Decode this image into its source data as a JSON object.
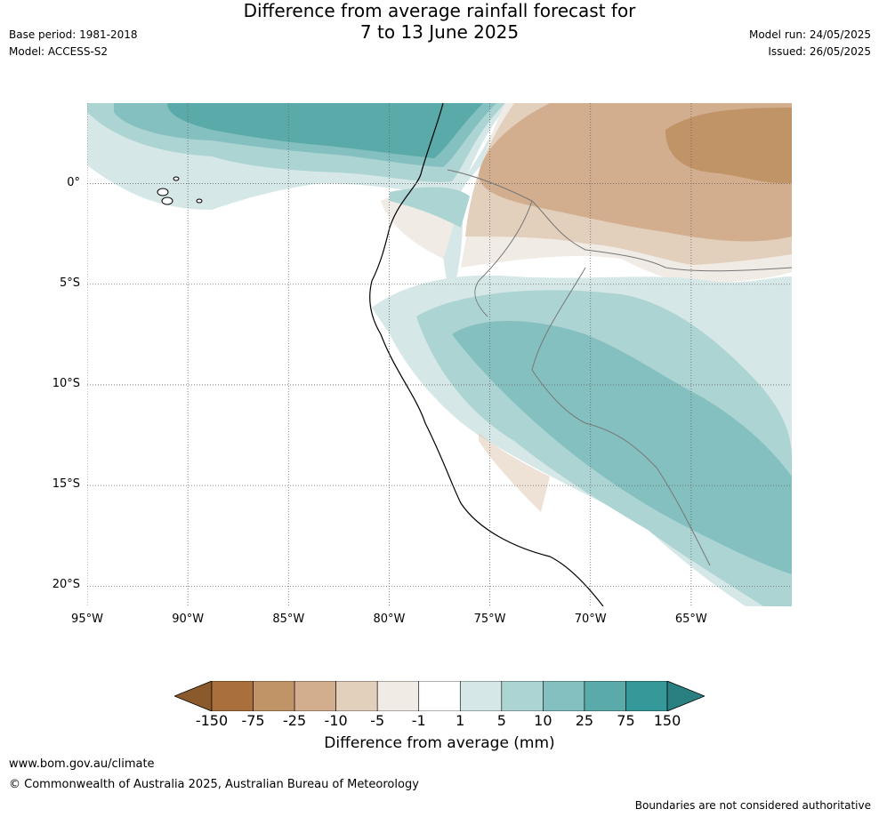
{
  "header": {
    "title_line1": "Difference from average rainfall forecast for",
    "title_line2": "7 to 13 June 2025",
    "base_period": "Base period: 1981-2018",
    "model": "Model: ACCESS-S2",
    "model_run": "Model run: 24/05/2025",
    "issued": "Issued: 26/05/2025"
  },
  "map": {
    "latitude_labels": [
      "0°",
      "5°S",
      "10°S",
      "15°S",
      "20°S"
    ],
    "longitude_labels": [
      "95°W",
      "90°W",
      "85°W",
      "80°W",
      "75°W",
      "70°W",
      "65°W"
    ],
    "extent": {
      "lon_min": -95,
      "lon_max": -60,
      "lat_min": -21,
      "lat_max": 4
    },
    "gridlines": true
  },
  "legend": {
    "label": "Difference from average (mm)",
    "ticks": [
      "-150",
      "-75",
      "-25",
      "-10",
      "-5",
      "-1",
      "1",
      "5",
      "10",
      "25",
      "75",
      "150"
    ],
    "colors": [
      "#8a5a2c",
      "#a9703d",
      "#c19468",
      "#d2ae8e",
      "#e2cfbc",
      "#f1ebe5",
      "#ffffff",
      "#d5e8e7",
      "#acd4d3",
      "#84c0bf",
      "#59aaa9",
      "#35999a",
      "#2a7f80"
    ]
  },
  "footer": {
    "url": "www.bom.gov.au/climate",
    "copyright": "© Commonwealth of Australia 2025, Australian Bureau of Meteorology",
    "disclaimer": "Boundaries are not considered authoritative"
  }
}
